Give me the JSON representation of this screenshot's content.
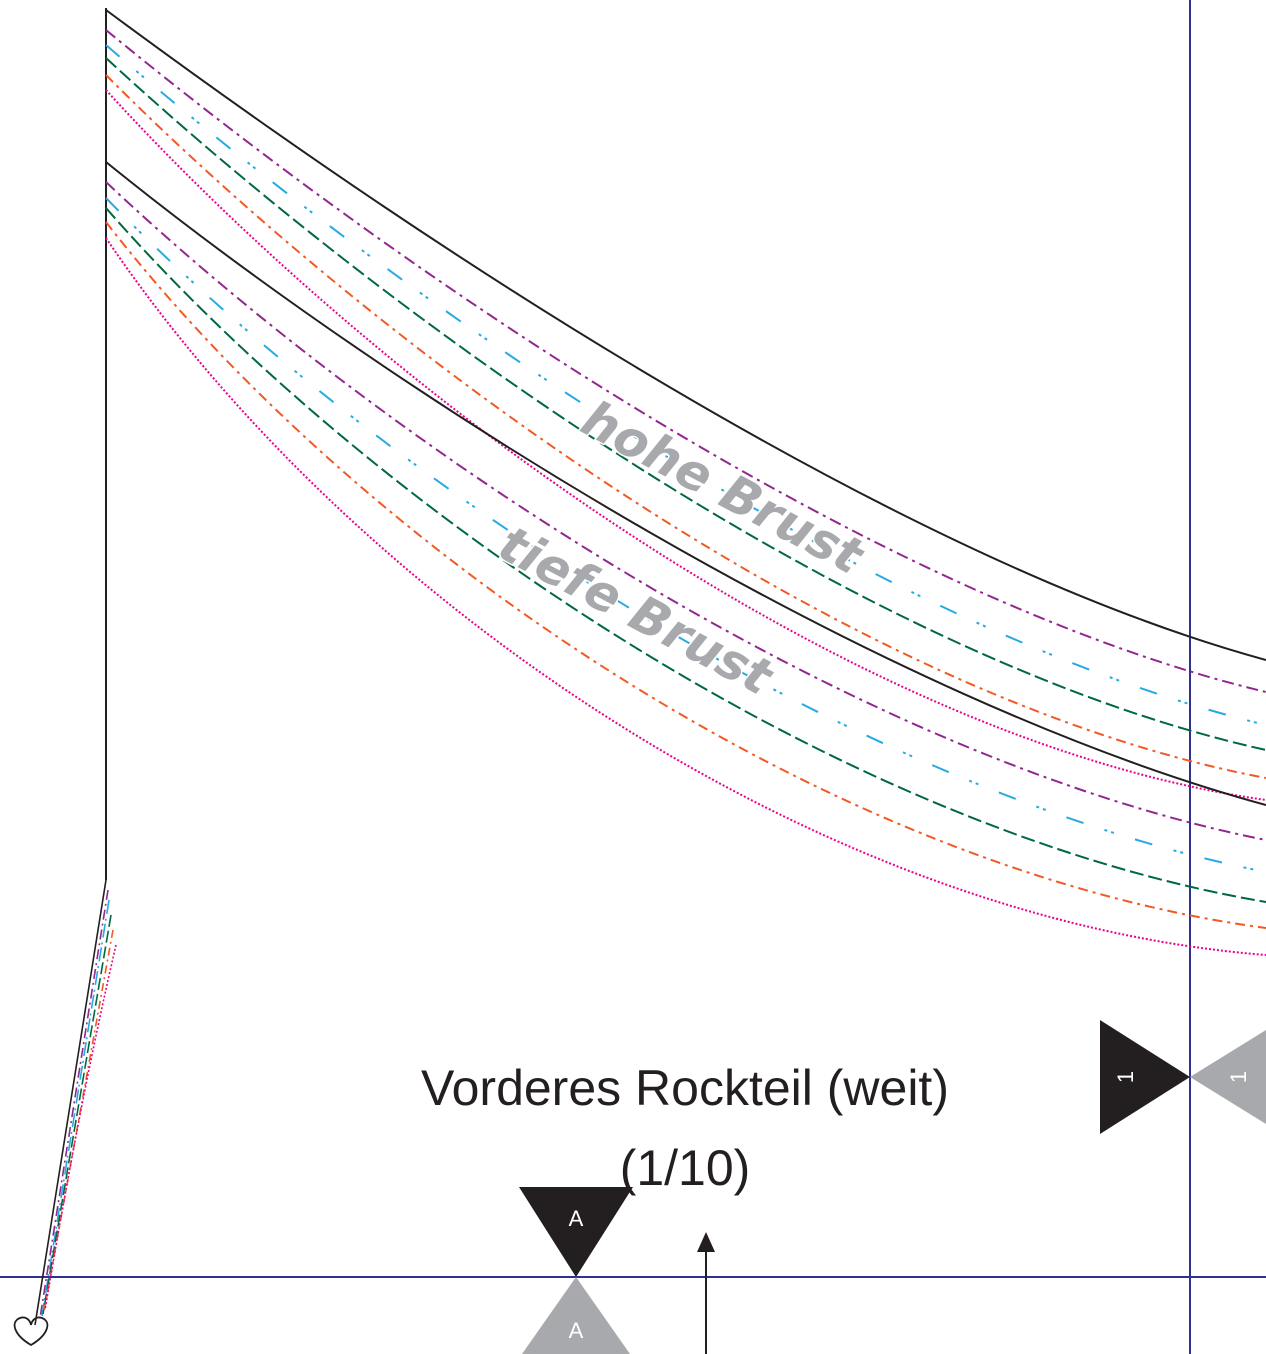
{
  "title": {
    "line1": "Vorderes Rockteil (weit)",
    "line2": "(1/10)"
  },
  "watermarks": {
    "high": "hohe Brust",
    "low": "tiefe Brust"
  },
  "markers": {
    "page_tile": "1",
    "notch": "A"
  },
  "colors": {
    "outline": "#231f20",
    "page_border": "#2e3192",
    "marker_dark": "#231f20",
    "marker_light": "#a7a9ac",
    "size_purple": "#92278f",
    "size_cyan": "#27aae1",
    "size_green": "#00693e",
    "size_orange": "#f15a24",
    "size_magenta": "#ec008c"
  },
  "icons": {
    "grainline": "arrow-up-icon",
    "fold": "heart-icon"
  }
}
